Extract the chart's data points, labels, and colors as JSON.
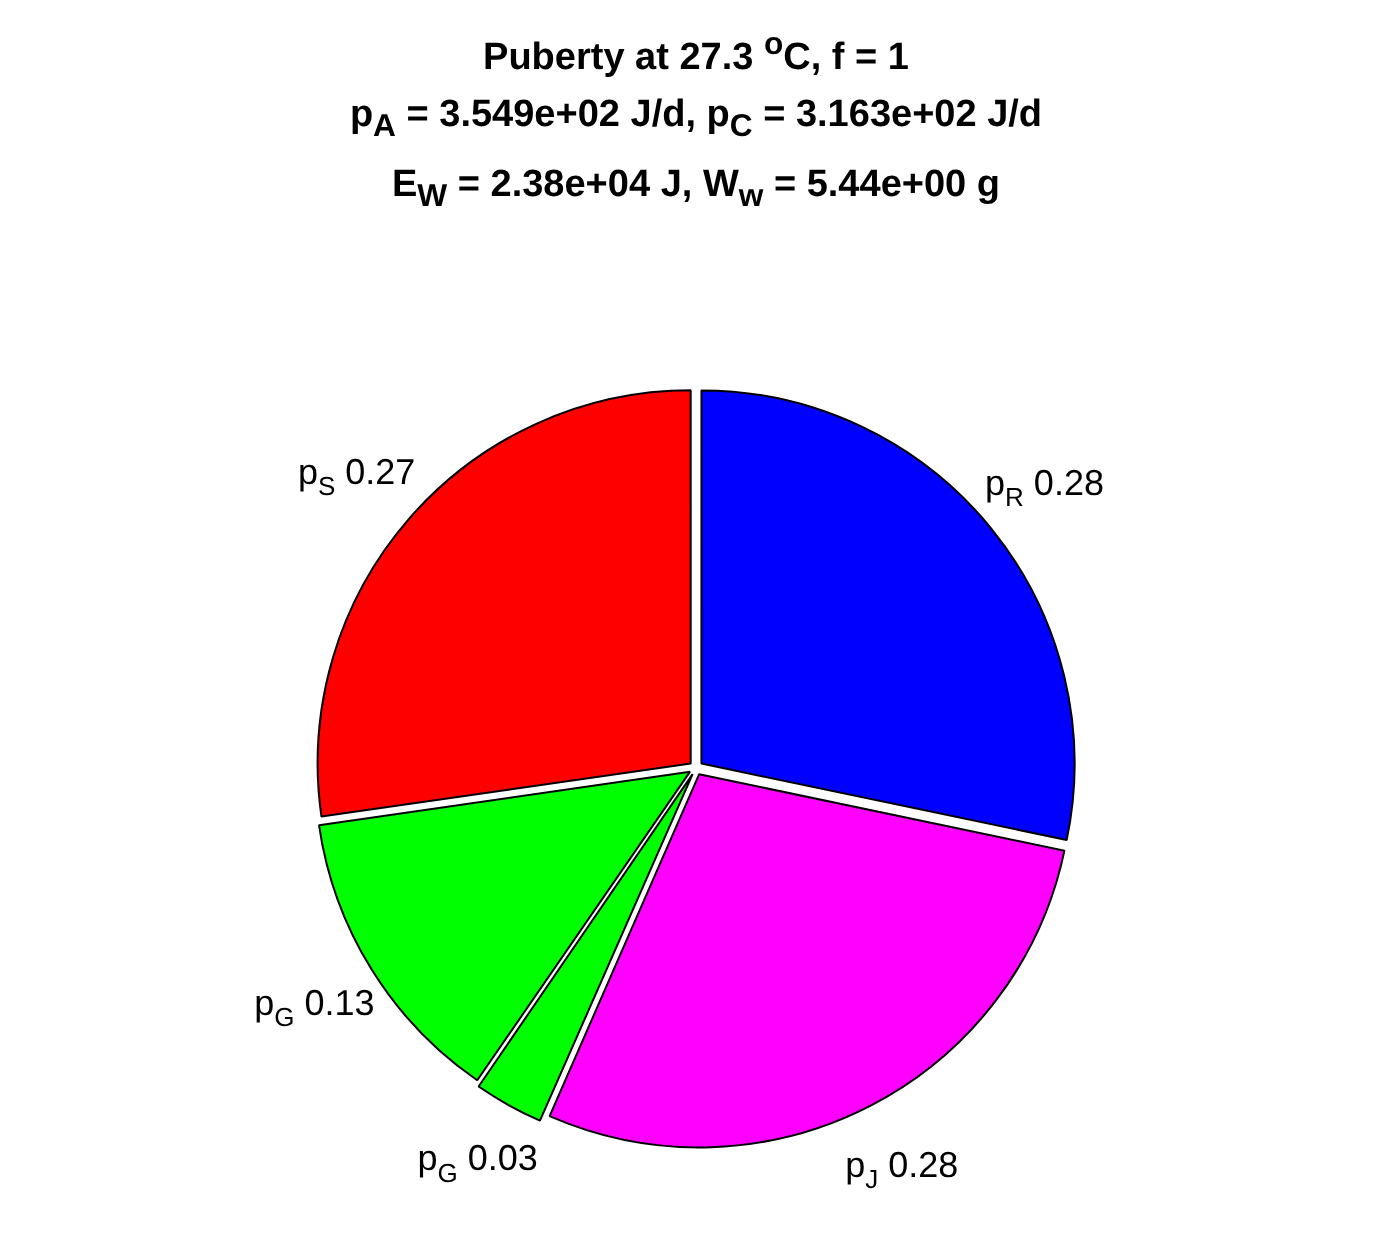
{
  "chart_data": {
    "type": "pie",
    "title": "Puberty at 27.3 $^{o}$C, f = 1\np$_{A}$ = 3.549e+02 J/d,  p$_{C}$ = 3.163e+02 J/d\nE$_{W}$ = 2.38e+04 J, W$_{w}$ = 5.44e+00 g",
    "categories": [
      "p$_{R}$",
      "p$_{J}$",
      "p$_{G}$",
      "p$_{G}$",
      "p$_{S}$"
    ],
    "values": [
      0.28,
      0.28,
      0.03,
      0.13,
      0.27
    ],
    "colors": [
      "#0000ff",
      "#ff00ff",
      "#00ff00",
      "#00ff00",
      "#ff0000"
    ],
    "data_labels": true,
    "legend": false
  }
}
